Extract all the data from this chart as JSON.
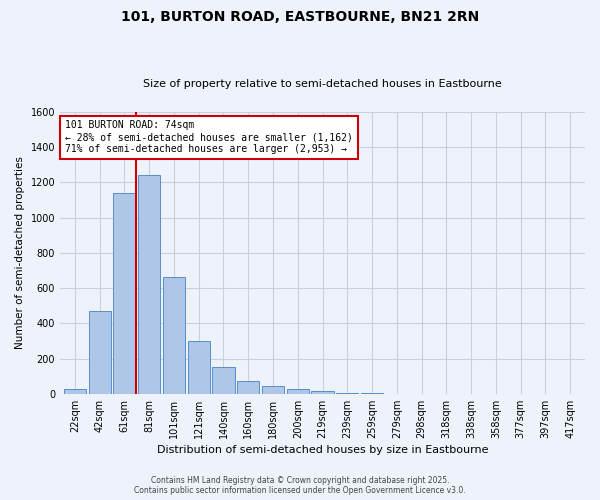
{
  "title": "101, BURTON ROAD, EASTBOURNE, BN21 2RN",
  "subtitle": "Size of property relative to semi-detached houses in Eastbourne",
  "xlabel": "Distribution of semi-detached houses by size in Eastbourne",
  "ylabel": "Number of semi-detached properties",
  "bar_labels": [
    "22sqm",
    "42sqm",
    "61sqm",
    "81sqm",
    "101sqm",
    "121sqm",
    "140sqm",
    "160sqm",
    "180sqm",
    "200sqm",
    "219sqm",
    "239sqm",
    "259sqm",
    "279sqm",
    "298sqm",
    "318sqm",
    "338sqm",
    "358sqm",
    "377sqm",
    "397sqm",
    "417sqm"
  ],
  "bar_values": [
    25,
    470,
    1140,
    1240,
    665,
    300,
    155,
    70,
    45,
    28,
    18,
    5,
    2,
    1,
    0,
    0,
    0,
    0,
    0,
    0,
    0
  ],
  "bar_color": "#aec6e8",
  "bar_edge_color": "#5590c8",
  "vline_color": "#cc0000",
  "annotation_text": "101 BURTON ROAD: 74sqm\n← 28% of semi-detached houses are smaller (1,162)\n71% of semi-detached houses are larger (2,953) →",
  "annotation_box_color": "#cc0000",
  "ylim": [
    0,
    1600
  ],
  "yticks": [
    0,
    200,
    400,
    600,
    800,
    1000,
    1200,
    1400,
    1600
  ],
  "footer_line1": "Contains HM Land Registry data © Crown copyright and database right 2025.",
  "footer_line2": "Contains public sector information licensed under the Open Government Licence v3.0.",
  "bg_color": "#eef2fb",
  "grid_color": "#c8d0e0"
}
